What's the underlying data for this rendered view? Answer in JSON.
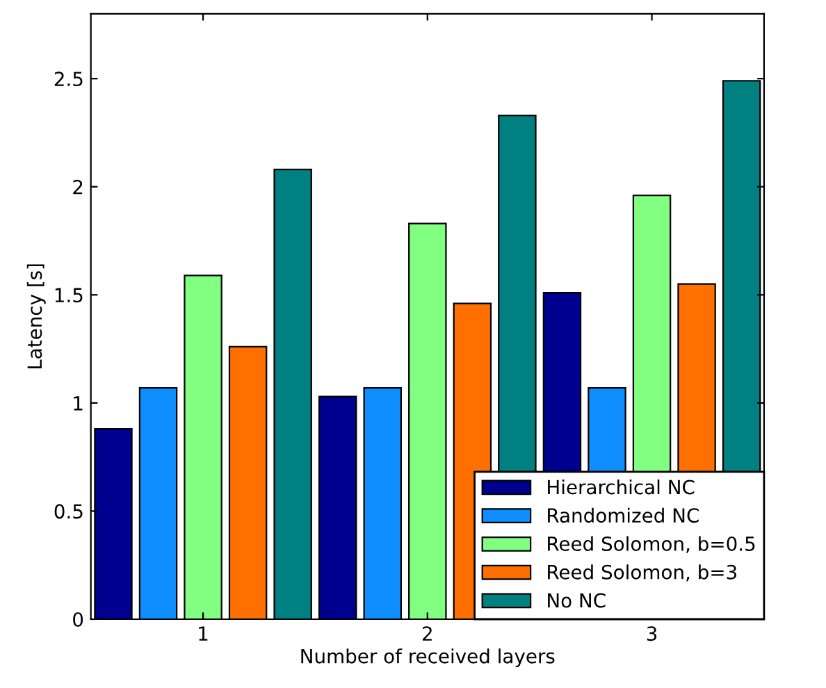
{
  "chart_data": {
    "type": "bar",
    "xlabel": "Number of received layers",
    "ylabel": "Latency [s]",
    "categories": [
      "1",
      "2",
      "3"
    ],
    "series": [
      {
        "name": "Hierarchical NC",
        "color": "#00008f",
        "values": [
          0.88,
          1.03,
          1.51
        ]
      },
      {
        "name": "Randomized NC",
        "color": "#0f8fff",
        "values": [
          1.07,
          1.07,
          1.07
        ]
      },
      {
        "name": "Reed Solomon, b=0.5",
        "color": "#80ff80",
        "values": [
          1.59,
          1.83,
          1.96
        ]
      },
      {
        "name": "Reed Solomon, b=3",
        "color": "#ff7000",
        "values": [
          1.26,
          1.46,
          1.55
        ]
      },
      {
        "name": "No NC",
        "color": "#008080",
        "values": [
          2.08,
          2.33,
          2.49
        ]
      }
    ],
    "ylim": [
      0,
      2.8
    ],
    "yticks": [
      0,
      0.5,
      1,
      1.5,
      2,
      2.5
    ],
    "grid": false,
    "legend": "bottom right"
  }
}
